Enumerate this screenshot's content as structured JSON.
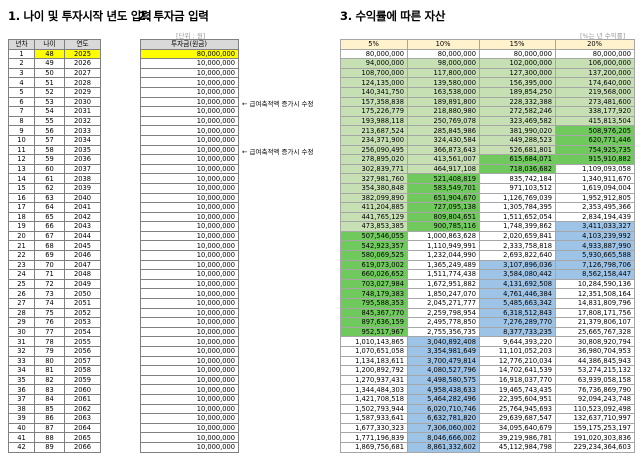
{
  "headings": {
    "left": "1. 나이 및 투자시작 년도 입력",
    "mid": "2. 투자금 입력",
    "right": "3. 수익률에 따른 자산"
  },
  "units": {
    "investment": "[단위 : 원]",
    "returns": "[%는 년 수익률]"
  },
  "table1": {
    "headers": [
      "년차",
      "나이",
      "연도"
    ],
    "rows": [
      [
        "1",
        "48",
        "2025"
      ],
      [
        "2",
        "49",
        "2026"
      ],
      [
        "3",
        "50",
        "2027"
      ],
      [
        "4",
        "51",
        "2028"
      ],
      [
        "5",
        "52",
        "2029"
      ],
      [
        "6",
        "53",
        "2030"
      ],
      [
        "7",
        "54",
        "2031"
      ],
      [
        "8",
        "55",
        "2032"
      ],
      [
        "9",
        "56",
        "2033"
      ],
      [
        "10",
        "57",
        "2034"
      ],
      [
        "11",
        "58",
        "2035"
      ],
      [
        "12",
        "59",
        "2036"
      ],
      [
        "13",
        "60",
        "2037"
      ],
      [
        "14",
        "61",
        "2038"
      ],
      [
        "15",
        "62",
        "2039"
      ],
      [
        "16",
        "63",
        "2040"
      ],
      [
        "17",
        "64",
        "2041"
      ],
      [
        "18",
        "65",
        "2042"
      ],
      [
        "19",
        "66",
        "2043"
      ],
      [
        "20",
        "67",
        "2044"
      ],
      [
        "21",
        "68",
        "2045"
      ],
      [
        "22",
        "69",
        "2046"
      ],
      [
        "23",
        "70",
        "2047"
      ],
      [
        "24",
        "71",
        "2048"
      ],
      [
        "25",
        "72",
        "2049"
      ],
      [
        "26",
        "73",
        "2050"
      ],
      [
        "27",
        "74",
        "2051"
      ],
      [
        "28",
        "75",
        "2052"
      ],
      [
        "29",
        "76",
        "2053"
      ],
      [
        "30",
        "77",
        "2054"
      ],
      [
        "31",
        "78",
        "2055"
      ],
      [
        "32",
        "79",
        "2056"
      ],
      [
        "33",
        "80",
        "2057"
      ],
      [
        "34",
        "81",
        "2058"
      ],
      [
        "35",
        "82",
        "2059"
      ],
      [
        "36",
        "83",
        "2060"
      ],
      [
        "37",
        "84",
        "2061"
      ],
      [
        "38",
        "85",
        "2062"
      ],
      [
        "39",
        "86",
        "2063"
      ],
      [
        "40",
        "87",
        "2064"
      ],
      [
        "41",
        "88",
        "2065"
      ],
      [
        "42",
        "89",
        "2066"
      ]
    ]
  },
  "table2": {
    "header": "투자금(원금)",
    "rows": [
      "80,000,000",
      "10,000,000",
      "10,000,000",
      "10,000,000",
      "10,000,000",
      "10,000,000",
      "10,000,000",
      "10,000,000",
      "10,000,000",
      "10,000,000",
      "10,000,000",
      "10,000,000",
      "10,000,000",
      "10,000,000",
      "10,000,000",
      "10,000,000",
      "10,000,000",
      "10,000,000",
      "10,000,000",
      "10,000,000",
      "10,000,000",
      "10,000,000",
      "10,000,000",
      "10,000,000",
      "10,000,000",
      "10,000,000",
      "10,000,000",
      "10,000,000",
      "10,000,000",
      "10,000,000",
      "10,000,000",
      "10,000,000",
      "10,000,000",
      "10,000,000",
      "10,000,000",
      "10,000,000",
      "10,000,000",
      "10,000,000",
      "10,000,000",
      "10,000,000",
      "10,000,000",
      "10,000,000"
    ]
  },
  "notes": [
    {
      "row": 6,
      "text": "← 급여축적액 증가시 수정"
    },
    {
      "row": 11,
      "text": "← 급여축적액 증가시 수정"
    }
  ],
  "table3": {
    "headers": [
      "5%",
      "10%",
      "15%",
      "20%"
    ],
    "rows": [
      [
        "80,000,000",
        "80,000,000",
        "80,000,000",
        "80,000,000"
      ],
      [
        "94,000,000",
        "98,000,000",
        "102,000,000",
        "106,000,000"
      ],
      [
        "108,700,000",
        "117,800,000",
        "127,300,000",
        "137,200,000"
      ],
      [
        "124,135,000",
        "139,580,000",
        "156,395,000",
        "174,640,000"
      ],
      [
        "140,341,750",
        "163,538,000",
        "189,854,250",
        "219,568,000"
      ],
      [
        "157,358,838",
        "189,891,800",
        "228,332,388",
        "273,481,600"
      ],
      [
        "175,226,779",
        "218,880,980",
        "272,582,246",
        "338,177,920"
      ],
      [
        "193,988,118",
        "250,769,078",
        "323,469,582",
        "415,813,504"
      ],
      [
        "213,687,524",
        "285,845,986",
        "381,990,020",
        "508,976,205"
      ],
      [
        "234,371,900",
        "324,430,584",
        "449,288,523",
        "620,771,446"
      ],
      [
        "256,090,495",
        "366,873,643",
        "526,681,801",
        "754,925,735"
      ],
      [
        "278,895,020",
        "413,561,007",
        "615,684,071",
        "915,910,882"
      ],
      [
        "302,839,771",
        "464,917,108",
        "718,036,682",
        "1,109,093,058"
      ],
      [
        "327,981,760",
        "521,408,819",
        "835,742,184",
        "1,340,911,670"
      ],
      [
        "354,380,848",
        "583,549,701",
        "971,103,512",
        "1,619,094,004"
      ],
      [
        "382,099,890",
        "651,904,670",
        "1,126,769,039",
        "1,952,912,805"
      ],
      [
        "411,204,885",
        "727,095,138",
        "1,305,784,395",
        "2,353,495,366"
      ],
      [
        "441,765,129",
        "809,804,651",
        "1,511,652,054",
        "2,834,194,439"
      ],
      [
        "473,853,385",
        "900,785,116",
        "1,748,399,862",
        "3,411,033,327"
      ],
      [
        "507,546,055",
        "1,000,863,628",
        "2,020,659,841",
        "4,103,239,992"
      ],
      [
        "542,923,357",
        "1,110,949,991",
        "2,333,758,818",
        "4,933,887,990"
      ],
      [
        "580,069,525",
        "1,232,044,990",
        "2,693,822,640",
        "5,930,665,588"
      ],
      [
        "619,073,002",
        "1,365,249,489",
        "3,107,896,036",
        "7,126,798,706"
      ],
      [
        "660,026,652",
        "1,511,774,438",
        "3,584,080,442",
        "8,562,158,447"
      ],
      [
        "703,027,984",
        "1,672,951,882",
        "4,131,692,508",
        "10,284,590,136"
      ],
      [
        "748,179,383",
        "1,850,247,070",
        "4,761,446,384",
        "12,351,508,164"
      ],
      [
        "795,588,353",
        "2,045,271,777",
        "5,485,663,342",
        "14,831,809,796"
      ],
      [
        "845,367,770",
        "2,259,798,954",
        "6,318,512,843",
        "17,808,171,756"
      ],
      [
        "897,636,159",
        "2,495,778,850",
        "7,276,289,770",
        "21,379,806,107"
      ],
      [
        "952,517,967",
        "2,755,356,735",
        "8,377,733,235",
        "25,665,767,328"
      ],
      [
        "1,010,143,865",
        "3,040,892,408",
        "9,644,393,220",
        "30,808,920,794"
      ],
      [
        "1,070,651,058",
        "3,354,981,649",
        "11,101,052,203",
        "36,980,704,953"
      ],
      [
        "1,134,183,611",
        "3,700,479,814",
        "12,776,210,034",
        "44,386,845,943"
      ],
      [
        "1,200,892,792",
        "4,080,527,796",
        "14,702,641,539",
        "53,274,215,132"
      ],
      [
        "1,270,937,431",
        "4,498,580,575",
        "16,918,037,770",
        "63,939,058,158"
      ],
      [
        "1,344,484,303",
        "4,958,438,633",
        "19,465,743,435",
        "76,736,869,790"
      ],
      [
        "1,421,708,518",
        "5,464,282,496",
        "22,395,604,951",
        "92,094,243,748"
      ],
      [
        "1,502,793,944",
        "6,020,710,746",
        "25,764,945,693",
        "110,523,092,498"
      ],
      [
        "1,587,933,641",
        "6,632,781,820",
        "29,639,687,547",
        "132,637,710,997"
      ],
      [
        "1,677,330,323",
        "7,306,060,002",
        "34,095,640,679",
        "159,175,253,197"
      ],
      [
        "1,771,196,839",
        "8,046,666,002",
        "39,219,986,781",
        "191,020,303,836"
      ],
      [
        "1,869,756,681",
        "8,861,332,602",
        "45,112,984,798",
        "229,234,364,603"
      ]
    ]
  },
  "fill_colors": {
    "cream": "#fff2cc",
    "light_green": "#c6e0b4",
    "green": "#70c95c",
    "blue": "#9dc3e6",
    "highlight": "#ffff00"
  }
}
